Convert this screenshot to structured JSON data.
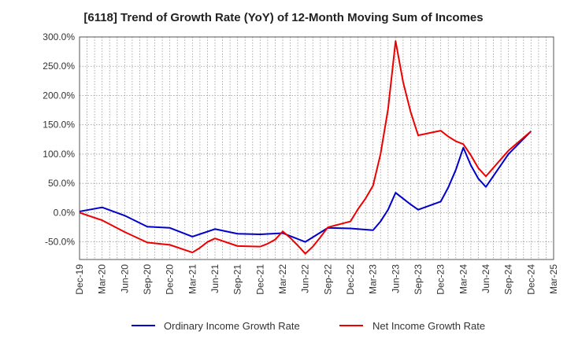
{
  "chart_data": {
    "type": "line",
    "title": "[6118]  Trend of Growth Rate (YoY) of 12-Month Moving Sum of Incomes",
    "xlabel": "",
    "ylabel": "",
    "grid": true,
    "legend_placement": "bottom",
    "ylim": [
      -80,
      300
    ],
    "y_ticks": [
      300,
      250,
      200,
      150,
      100,
      50,
      0,
      -50
    ],
    "y_tick_labels": [
      "300.0%",
      "250.0%",
      "200.0%",
      "150.0%",
      "100.0%",
      "50.0%",
      "0.0%",
      "-50.0%"
    ],
    "x_tick_labels": [
      "Dec-19",
      "Mar-20",
      "Jun-20",
      "Sep-20",
      "Dec-20",
      "Mar-21",
      "Jun-21",
      "Sep-21",
      "Dec-21",
      "Mar-22",
      "Jun-22",
      "Sep-22",
      "Dec-22",
      "Mar-23",
      "Jun-23",
      "Sep-23",
      "Dec-23",
      "Mar-24",
      "Jun-24",
      "Sep-24",
      "Dec-24",
      "Mar-25"
    ],
    "x_months": [
      "Dec-19",
      "Jan-20",
      "Feb-20",
      "Mar-20",
      "Apr-20",
      "May-20",
      "Jun-20",
      "Jul-20",
      "Aug-20",
      "Sep-20",
      "Oct-20",
      "Nov-20",
      "Dec-20",
      "Jan-21",
      "Feb-21",
      "Mar-21",
      "Apr-21",
      "May-21",
      "Jun-21",
      "Jul-21",
      "Aug-21",
      "Sep-21",
      "Oct-21",
      "Nov-21",
      "Dec-21",
      "Jan-22",
      "Feb-22",
      "Mar-22",
      "Apr-22",
      "May-22",
      "Jun-22",
      "Jul-22",
      "Aug-22",
      "Sep-22",
      "Oct-22",
      "Nov-22",
      "Dec-22",
      "Jan-23",
      "Feb-23",
      "Mar-23",
      "Apr-23",
      "May-23",
      "Jun-23",
      "Jul-23",
      "Aug-23",
      "Sep-23",
      "Oct-23",
      "Nov-23",
      "Dec-23",
      "Jan-24",
      "Feb-24",
      "Mar-24",
      "Apr-24",
      "May-24",
      "Jun-24",
      "Jul-24",
      "Aug-24",
      "Sep-24",
      "Oct-24",
      "Nov-24",
      "Dec-24",
      "Jan-25",
      "Feb-25",
      "Mar-25"
    ],
    "series": [
      {
        "name": "Ordinary Income Growth Rate",
        "color": "#0000cc",
        "x": [
          "Dec-19",
          "Mar-20",
          "Jun-20",
          "Sep-20",
          "Dec-20",
          "Mar-21",
          "Jun-21",
          "Sep-21",
          "Dec-21",
          "Mar-22",
          "Jun-22",
          "Sep-22",
          "Dec-22",
          "Mar-23",
          "Apr-23",
          "May-23",
          "Jun-23",
          "Jul-23",
          "Aug-23",
          "Sep-23",
          "Dec-23",
          "Jan-24",
          "Feb-24",
          "Mar-24",
          "Apr-24",
          "May-24",
          "Jun-24",
          "Sep-24",
          "Dec-24"
        ],
        "values": [
          2,
          9,
          -5,
          -24,
          -26,
          -41,
          -28,
          -36,
          -37,
          -35,
          -50,
          -26,
          -27,
          -30,
          -15,
          5,
          34,
          24,
          14,
          5,
          19,
          43,
          73,
          111,
          81,
          58,
          44,
          100,
          139
        ]
      },
      {
        "name": "Net Income Growth Rate",
        "color": "#ee0000",
        "x": [
          "Dec-19",
          "Mar-20",
          "Jun-20",
          "Sep-20",
          "Dec-20",
          "Mar-21",
          "Apr-21",
          "May-21",
          "Jun-21",
          "Sep-21",
          "Dec-21",
          "Jan-22",
          "Feb-22",
          "Mar-22",
          "Apr-22",
          "May-22",
          "Jun-22",
          "Jul-22",
          "Aug-22",
          "Sep-22",
          "Dec-22",
          "Jan-23",
          "Feb-23",
          "Mar-23",
          "Apr-23",
          "May-23",
          "Jun-23",
          "Jul-23",
          "Aug-23",
          "Sep-23",
          "Dec-23",
          "Jan-24",
          "Feb-24",
          "Mar-24",
          "Apr-24",
          "May-24",
          "Jun-24",
          "Sep-24",
          "Dec-24"
        ],
        "values": [
          0,
          -13,
          -33,
          -51,
          -55,
          -68,
          -60,
          -50,
          -44,
          -57,
          -58,
          -53,
          -46,
          -32,
          -43,
          -56,
          -70,
          -58,
          -42,
          -25,
          -15,
          6,
          24,
          46,
          100,
          177,
          293,
          223,
          172,
          132,
          140,
          130,
          122,
          117,
          98,
          76,
          62,
          106,
          139
        ]
      }
    ]
  }
}
